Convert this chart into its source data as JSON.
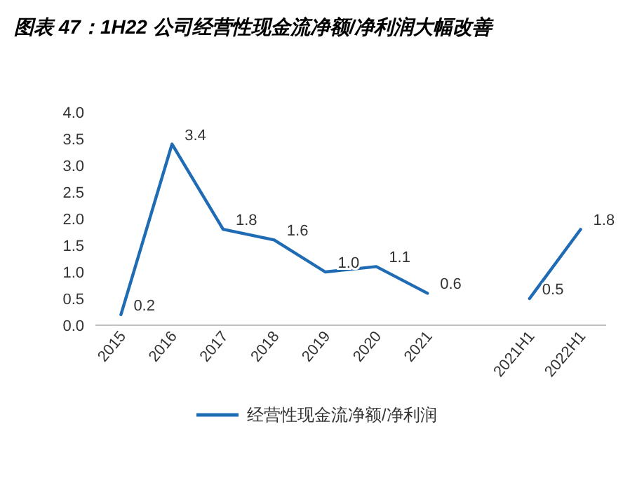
{
  "chart_data": {
    "type": "line",
    "title": "图表 47：1H22 公司经营性现金流净额/净利润大幅改善",
    "categories": [
      "2015",
      "2016",
      "2017",
      "2018",
      "2019",
      "2020",
      "2021",
      null,
      "2021H1",
      "2022H1"
    ],
    "series": [
      {
        "name": "经营性现金流净额/净利润",
        "color": "#1f6cb5",
        "values": [
          0.2,
          3.4,
          1.8,
          1.6,
          1.0,
          1.1,
          0.6,
          null,
          0.5,
          1.8
        ],
        "value_labels": [
          "0.2",
          "3.4",
          "1.8",
          "1.6",
          "1.0",
          "1.1",
          "0.6",
          null,
          "0.5",
          "1.8"
        ]
      }
    ],
    "ylim": [
      0,
      4
    ],
    "yticks": [
      {
        "value": 0,
        "label": "0.0"
      },
      {
        "value": 0.5,
        "label": "0.5"
      },
      {
        "value": 1,
        "label": "1.0"
      },
      {
        "value": 1.5,
        "label": "1.5"
      },
      {
        "value": 2,
        "label": "2.0"
      },
      {
        "value": 2.5,
        "label": "2.5"
      },
      {
        "value": 3,
        "label": "3.0"
      },
      {
        "value": 3.5,
        "label": "3.5"
      },
      {
        "value": 4,
        "label": "4.0"
      }
    ],
    "grid": false,
    "legend": "bottom"
  }
}
